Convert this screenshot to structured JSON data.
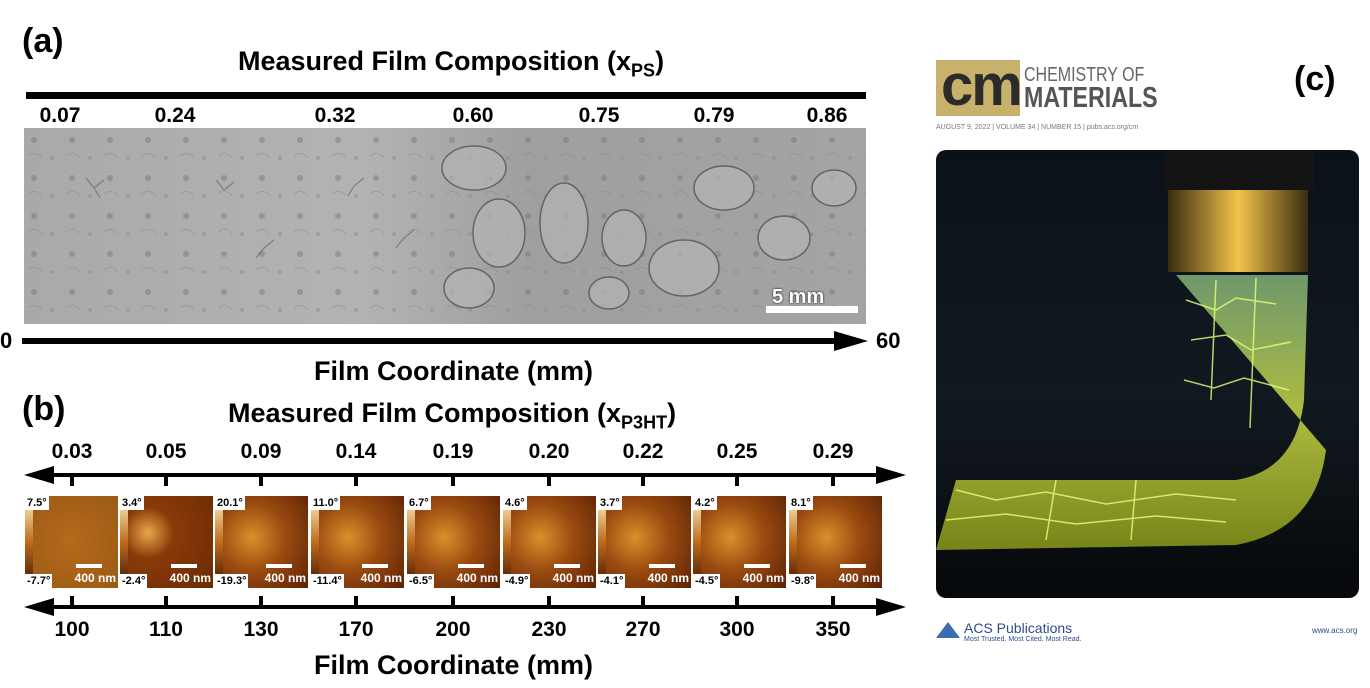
{
  "panel_a": {
    "label": "(a)",
    "title": "Measured Film Composition (x",
    "title_sub": "PS",
    "title_close": ")",
    "compositions": [
      "0.07",
      "0.24",
      "0.32",
      "0.60",
      "0.75",
      "0.79",
      "0.86"
    ],
    "scale_bar": "5 mm",
    "axis_start": "0",
    "axis_end": "60",
    "axis_label": "Film Coordinate (mm)"
  },
  "panel_b": {
    "label": "(b)",
    "title": "Measured Film Composition (x",
    "title_sub": "P3HT",
    "title_close": ")",
    "compositions": [
      "0.03",
      "0.05",
      "0.09",
      "0.14",
      "0.19",
      "0.20",
      "0.22",
      "0.25",
      "0.29"
    ],
    "images": [
      {
        "max": "7.5°",
        "min": "-7.7°",
        "scale": "400 nm"
      },
      {
        "max": "3.4°",
        "min": "-2.4°",
        "scale": "400 nm"
      },
      {
        "max": "20.1°",
        "min": "-19.3°",
        "scale": "400 nm"
      },
      {
        "max": "11.0°",
        "min": "-11.4°",
        "scale": "400 nm"
      },
      {
        "max": "6.7°",
        "min": "-6.5°",
        "scale": "400 nm"
      },
      {
        "max": "4.6°",
        "min": "-4.9°",
        "scale": "400 nm"
      },
      {
        "max": "3.7°",
        "min": "-4.1°",
        "scale": "400 nm"
      },
      {
        "max": "4.2°",
        "min": "-4.5°",
        "scale": "400 nm"
      },
      {
        "max": "8.1°",
        "min": "-9.8°",
        "scale": "400 nm"
      }
    ],
    "coordinates": [
      "100",
      "110",
      "130",
      "170",
      "200",
      "230",
      "270",
      "300",
      "350"
    ],
    "axis_label": "Film Coordinate (mm)"
  },
  "panel_c": {
    "label": "(c)",
    "journal_logo": "cm",
    "journal_name_1": "CHEMISTRY OF",
    "journal_name_2": "MATERIALS",
    "issue_line": "AUGUST 9, 2022 | VOLUME 34 | NUMBER 15 | pubs.acs.org/cm",
    "publisher": "ACS Publications",
    "publisher_tagline": "Most Trusted. Most Cited. Most Read.",
    "publisher_url": "www.acs.org"
  }
}
